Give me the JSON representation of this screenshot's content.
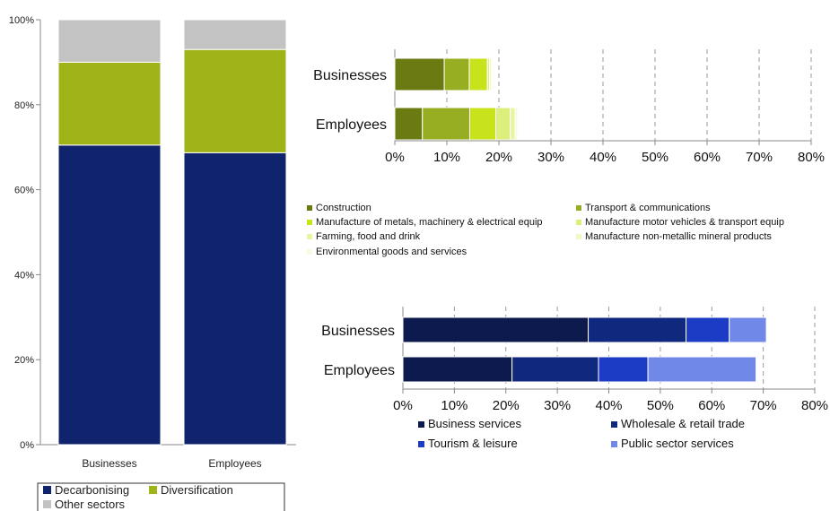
{
  "chart_data": [
    {
      "type": "bar",
      "stacked": true,
      "orientation": "vertical",
      "categories": [
        "Businesses",
        "Employees"
      ],
      "series": [
        {
          "name": "Decarbonising",
          "values": [
            70.5,
            68.7
          ],
          "color": "#10246e"
        },
        {
          "name": "Diversification",
          "values": [
            19.5,
            24.3
          ],
          "color": "#a0b41a"
        },
        {
          "name": "Other sectors",
          "values": [
            10.0,
            7.0
          ],
          "color": "#c3c3c3"
        }
      ],
      "yticks": [
        "0%",
        "20%",
        "40%",
        "60%",
        "80%",
        "100%"
      ],
      "ylim": [
        0,
        100
      ],
      "grid": false,
      "legend": "bottom"
    },
    {
      "type": "bar",
      "stacked": true,
      "orientation": "horizontal",
      "categories": [
        "Businesses",
        "Employees"
      ],
      "series": [
        {
          "name": "Construction",
          "values": [
            9.5,
            5.3
          ],
          "color": "#6c7a12"
        },
        {
          "name": "Transport & communications",
          "values": [
            4.8,
            9.1
          ],
          "color": "#97ae22"
        },
        {
          "name": "Manufacture of metals, machinery & electrical equip",
          "values": [
            3.5,
            5.0
          ],
          "color": "#c8e21c"
        },
        {
          "name": "Manufacture  motor vehicles & transport equip",
          "values": [
            0.4,
            2.8
          ],
          "color": "#dcee7c"
        },
        {
          "name": "Farming, food and drink",
          "values": [
            0.3,
            0.9
          ],
          "color": "#e8f4a4"
        },
        {
          "name": "Manufacture  non-metallic mineral products",
          "values": [
            0.2,
            0.4
          ],
          "color": "#f1f8cb"
        },
        {
          "name": "Environmental goods and services",
          "values": [
            0.2,
            0.3
          ],
          "color": "#f8fbe3"
        }
      ],
      "xticks": [
        "0%",
        "10%",
        "20%",
        "30%",
        "40%",
        "50%",
        "60%",
        "70%",
        "80%"
      ],
      "xlim": [
        0,
        80
      ],
      "grid": true,
      "legend": "bottom"
    },
    {
      "type": "bar",
      "stacked": true,
      "orientation": "horizontal",
      "categories": [
        "Businesses",
        "Employees"
      ],
      "series": [
        {
          "name": "Business services",
          "values": [
            36.0,
            21.2
          ],
          "color": "#0c1a4d"
        },
        {
          "name": "Wholesale & retail trade",
          "values": [
            19.0,
            16.8
          ],
          "color": "#10287d"
        },
        {
          "name": "Tourism & leisure",
          "values": [
            8.4,
            9.6
          ],
          "color": "#1c3cc6"
        },
        {
          "name": "Public sector services",
          "values": [
            7.2,
            21.0
          ],
          "color": "#7088e8"
        }
      ],
      "xticks": [
        "0%",
        "10%",
        "20%",
        "30%",
        "40%",
        "50%",
        "60%",
        "70%",
        "80%"
      ],
      "xlim": [
        0,
        80
      ],
      "grid": true,
      "legend": "bottom"
    }
  ]
}
